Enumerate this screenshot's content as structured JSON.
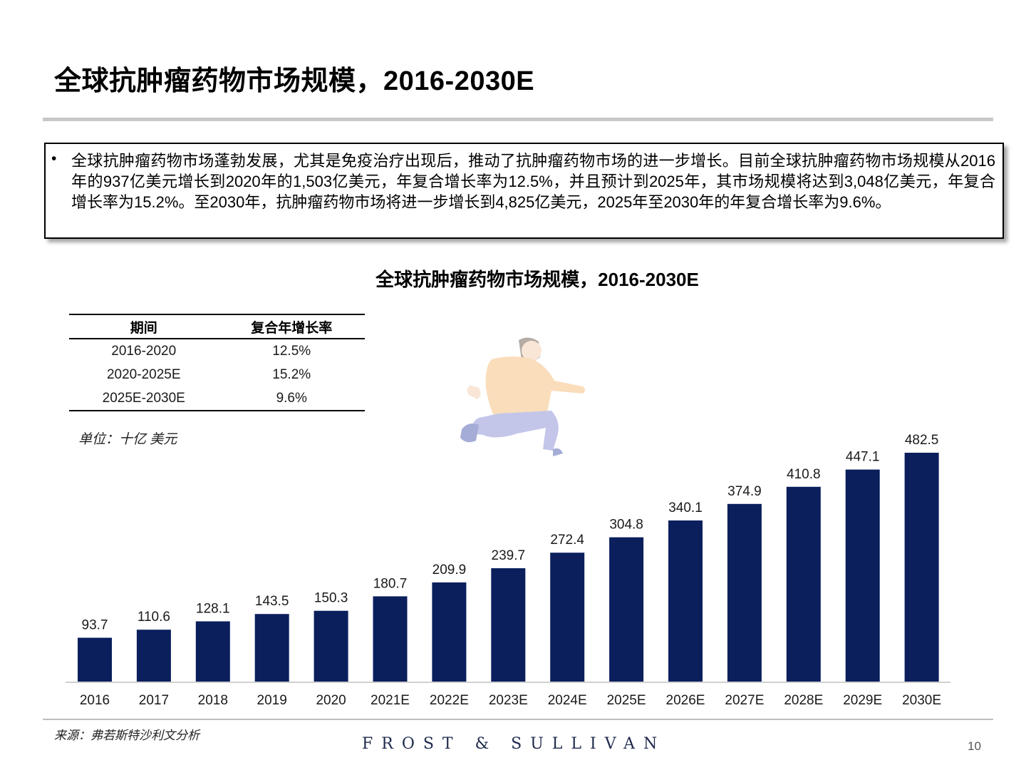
{
  "page": {
    "title": "全球抗肿瘤药物市场规模，2016-2030E",
    "summary": "全球抗肿瘤药物市场蓬勃发展，尤其是免疫治疗出现后，推动了抗肿瘤药物市场的进一步增长。目前全球抗肿瘤药物市场规模从2016年的937亿美元增长到2020年的1,503亿美元，年复合增长率为12.5%，并且预计到2025年，其市场规模将达到3,048亿美元，年复合增长率为15.2%。至2030年，抗肿瘤药物市场将进一步增长到4,825亿美元，2025年至2030年的年复合增长率为9.6%。",
    "source": "来源：弗若斯特沙利文分析",
    "brand": "FROST & SULLIVAN",
    "page_number": "10"
  },
  "cagr_table": {
    "headers": [
      "期间",
      "复合年增长率"
    ],
    "rows": [
      [
        "2016-2020",
        "12.5%"
      ],
      [
        "2020-2025E",
        "15.2%"
      ],
      [
        "2025E-2030E",
        "9.6%"
      ]
    ]
  },
  "chart_data": {
    "type": "bar",
    "title": "全球抗肿瘤药物市场规模，2016-2030E",
    "unit_label": "单位：十亿 美元",
    "categories": [
      "2016",
      "2017",
      "2018",
      "2019",
      "2020",
      "2021E",
      "2022E",
      "2023E",
      "2024E",
      "2025E",
      "2026E",
      "2027E",
      "2028E",
      "2029E",
      "2030E"
    ],
    "values": [
      93.7,
      110.6,
      128.1,
      143.5,
      150.3,
      180.7,
      209.9,
      239.7,
      272.4,
      304.8,
      340.1,
      374.9,
      410.8,
      447.1,
      482.5
    ],
    "value_labels": [
      "93.7",
      "110.6",
      "128.1",
      "143.5",
      "150.3",
      "180.7",
      "209.9",
      "239.7",
      "272.4",
      "304.8",
      "340.1",
      "374.9",
      "410.8",
      "447.1",
      "482.5"
    ],
    "ylim": [
      0,
      482.5
    ],
    "grid": false,
    "bar_color": "#0a1f5c"
  }
}
